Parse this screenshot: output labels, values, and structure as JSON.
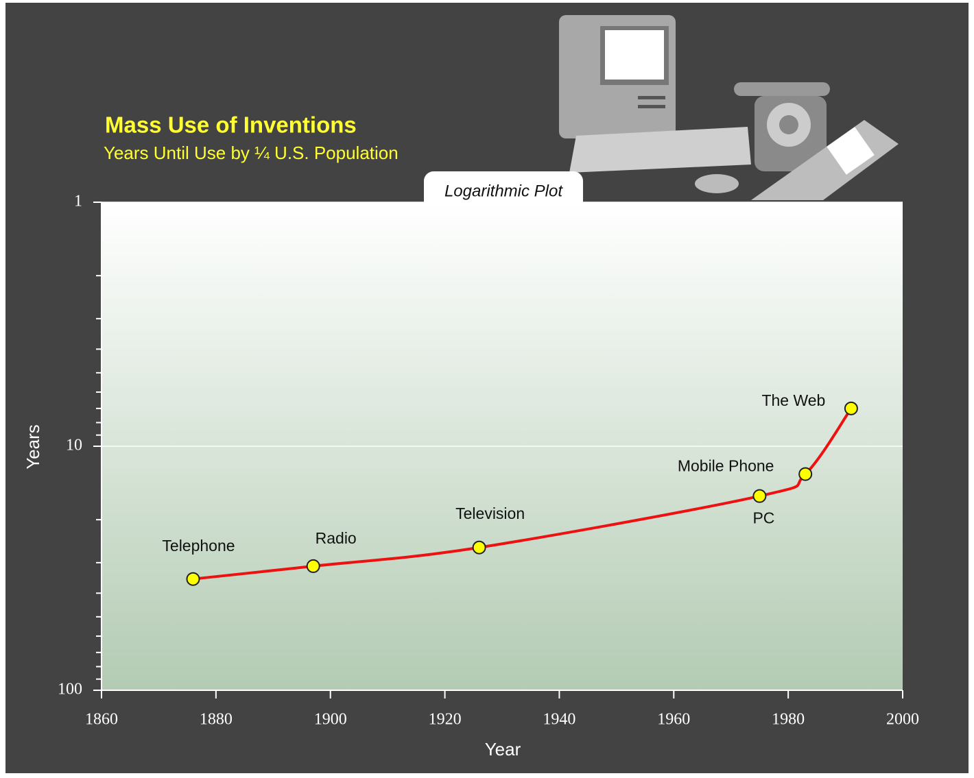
{
  "chart_data": {
    "type": "line",
    "title": "Mass Use of Inventions",
    "subtitle": "Years Until Use by ¼ U.S. Population",
    "annotation": "Logarithmic Plot",
    "xlabel": "Year",
    "ylabel": "Years",
    "x": [
      1876,
      1897,
      1926,
      1975,
      1983,
      1991
    ],
    "point_labels": [
      "Telephone",
      "Radio",
      "Television",
      "PC",
      "Mobile Phone",
      "The Web"
    ],
    "values": [
      35,
      31,
      26,
      16,
      13,
      7
    ],
    "color": "#ee1111",
    "marker_color": "#ffff00",
    "xlim": [
      1860,
      2000
    ],
    "xticks": [
      1860,
      1880,
      1900,
      1920,
      1940,
      1960,
      1980,
      2000
    ],
    "yscale": "log",
    "y_inverted": true,
    "ylim": [
      1,
      100
    ],
    "yticks": [
      1,
      10,
      100
    ],
    "yminorticks": [
      2,
      3,
      4,
      5,
      6,
      7,
      8,
      9,
      20,
      30,
      40,
      50,
      60,
      70,
      80,
      90
    ],
    "grid": true
  }
}
